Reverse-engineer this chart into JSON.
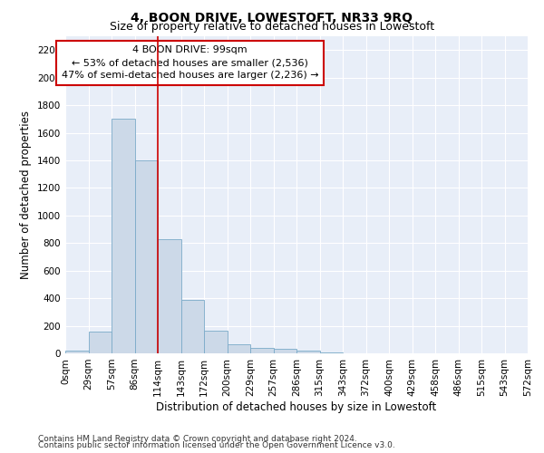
{
  "title": "4, BOON DRIVE, LOWESTOFT, NR33 9RQ",
  "subtitle": "Size of property relative to detached houses in Lowestoft",
  "xlabel": "Distribution of detached houses by size in Lowestoft",
  "ylabel": "Number of detached properties",
  "bar_color": "#ccd9e8",
  "bar_edge_color": "#7aaac8",
  "background_color": "#e8eef8",
  "grid_color": "#ffffff",
  "vline_color": "#cc0000",
  "vline_x": 3.5,
  "annotation_line1": "4 BOON DRIVE: 99sqm",
  "annotation_line2": "← 53% of detached houses are smaller (2,536)",
  "annotation_line3": "47% of semi-detached houses are larger (2,236) →",
  "annotation_box_color": "#ffffff",
  "annotation_box_edge": "#cc0000",
  "footer_line1": "Contains HM Land Registry data © Crown copyright and database right 2024.",
  "footer_line2": "Contains public sector information licensed under the Open Government Licence v3.0.",
  "bar_values": [
    20,
    155,
    1700,
    1400,
    830,
    385,
    165,
    65,
    40,
    30,
    20,
    5,
    2,
    1,
    0,
    0,
    0,
    0,
    0,
    0
  ],
  "x_labels": [
    "0sqm",
    "29sqm",
    "57sqm",
    "86sqm",
    "114sqm",
    "143sqm",
    "172sqm",
    "200sqm",
    "229sqm",
    "257sqm",
    "286sqm",
    "315sqm",
    "343sqm",
    "372sqm",
    "400sqm",
    "429sqm",
    "458sqm",
    "486sqm",
    "515sqm",
    "543sqm",
    "572sqm"
  ],
  "ylim": [
    0,
    2300
  ],
  "yticks": [
    0,
    200,
    400,
    600,
    800,
    1000,
    1200,
    1400,
    1600,
    1800,
    2000,
    2200
  ],
  "title_fontsize": 10,
  "subtitle_fontsize": 9,
  "axis_label_fontsize": 8.5,
  "tick_fontsize": 7.5,
  "annotation_fontsize": 8,
  "footer_fontsize": 6.5
}
